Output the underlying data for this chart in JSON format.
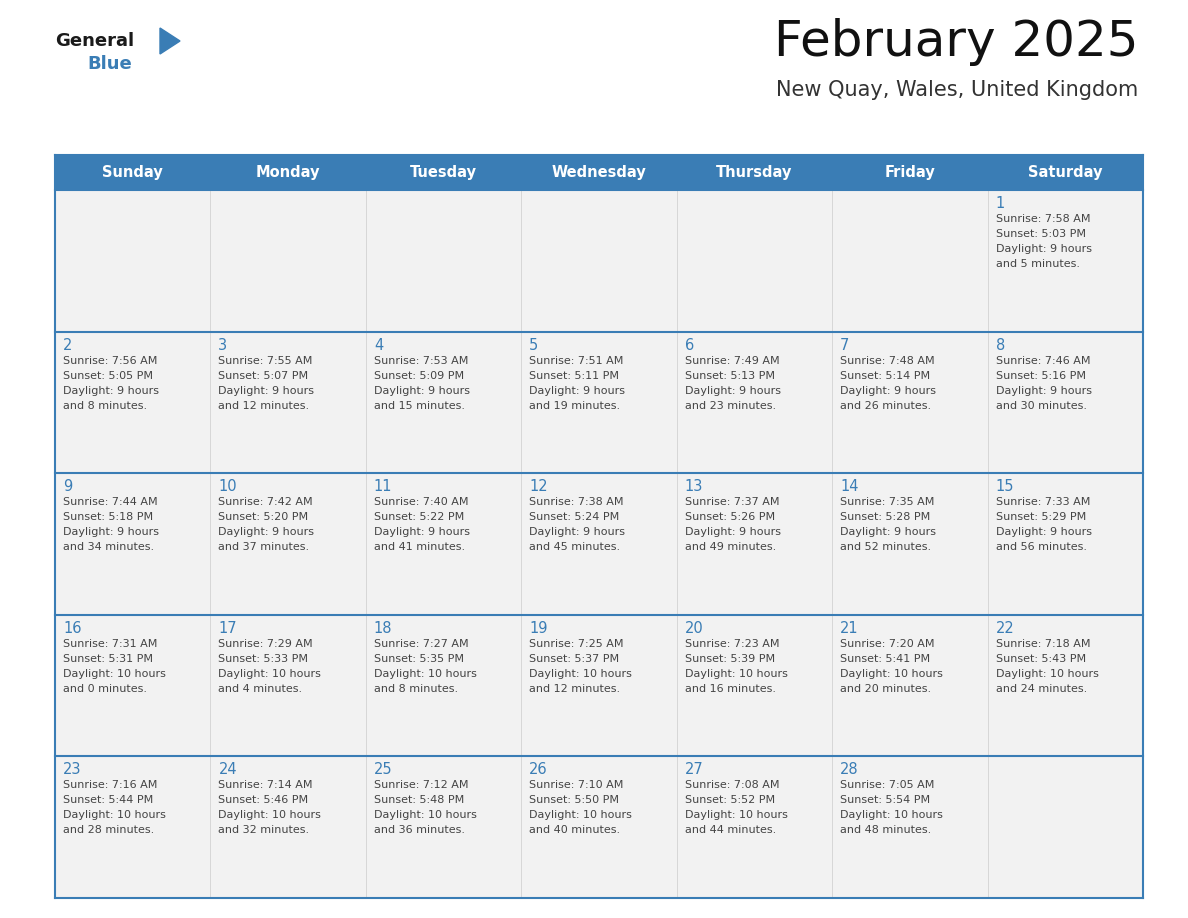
{
  "title": "February 2025",
  "subtitle": "New Quay, Wales, United Kingdom",
  "days_of_week": [
    "Sunday",
    "Monday",
    "Tuesday",
    "Wednesday",
    "Thursday",
    "Friday",
    "Saturday"
  ],
  "header_color": "#3A7DB5",
  "header_text_color": "#FFFFFF",
  "cell_bg": "#F2F2F2",
  "day_num_color": "#3A7DB5",
  "border_color": "#3A7DB5",
  "separator_color": "#AAAAAA",
  "info_text_color": "#444444",
  "logo_general_color": "#1A1A1A",
  "logo_blue_color": "#3A7DB5",
  "logo_triangle_color": "#3A7DB5",
  "calendar_data": [
    [
      {
        "day": null,
        "info": null
      },
      {
        "day": null,
        "info": null
      },
      {
        "day": null,
        "info": null
      },
      {
        "day": null,
        "info": null
      },
      {
        "day": null,
        "info": null
      },
      {
        "day": null,
        "info": null
      },
      {
        "day": 1,
        "sunrise": "7:58 AM",
        "sunset": "5:03 PM",
        "daylight": "9 hours",
        "daylight2": "and 5 minutes."
      }
    ],
    [
      {
        "day": 2,
        "sunrise": "7:56 AM",
        "sunset": "5:05 PM",
        "daylight": "9 hours",
        "daylight2": "and 8 minutes."
      },
      {
        "day": 3,
        "sunrise": "7:55 AM",
        "sunset": "5:07 PM",
        "daylight": "9 hours",
        "daylight2": "and 12 minutes."
      },
      {
        "day": 4,
        "sunrise": "7:53 AM",
        "sunset": "5:09 PM",
        "daylight": "9 hours",
        "daylight2": "and 15 minutes."
      },
      {
        "day": 5,
        "sunrise": "7:51 AM",
        "sunset": "5:11 PM",
        "daylight": "9 hours",
        "daylight2": "and 19 minutes."
      },
      {
        "day": 6,
        "sunrise": "7:49 AM",
        "sunset": "5:13 PM",
        "daylight": "9 hours",
        "daylight2": "and 23 minutes."
      },
      {
        "day": 7,
        "sunrise": "7:48 AM",
        "sunset": "5:14 PM",
        "daylight": "9 hours",
        "daylight2": "and 26 minutes."
      },
      {
        "day": 8,
        "sunrise": "7:46 AM",
        "sunset": "5:16 PM",
        "daylight": "9 hours",
        "daylight2": "and 30 minutes."
      }
    ],
    [
      {
        "day": 9,
        "sunrise": "7:44 AM",
        "sunset": "5:18 PM",
        "daylight": "9 hours",
        "daylight2": "and 34 minutes."
      },
      {
        "day": 10,
        "sunrise": "7:42 AM",
        "sunset": "5:20 PM",
        "daylight": "9 hours",
        "daylight2": "and 37 minutes."
      },
      {
        "day": 11,
        "sunrise": "7:40 AM",
        "sunset": "5:22 PM",
        "daylight": "9 hours",
        "daylight2": "and 41 minutes."
      },
      {
        "day": 12,
        "sunrise": "7:38 AM",
        "sunset": "5:24 PM",
        "daylight": "9 hours",
        "daylight2": "and 45 minutes."
      },
      {
        "day": 13,
        "sunrise": "7:37 AM",
        "sunset": "5:26 PM",
        "daylight": "9 hours",
        "daylight2": "and 49 minutes."
      },
      {
        "day": 14,
        "sunrise": "7:35 AM",
        "sunset": "5:28 PM",
        "daylight": "9 hours",
        "daylight2": "and 52 minutes."
      },
      {
        "day": 15,
        "sunrise": "7:33 AM",
        "sunset": "5:29 PM",
        "daylight": "9 hours",
        "daylight2": "and 56 minutes."
      }
    ],
    [
      {
        "day": 16,
        "sunrise": "7:31 AM",
        "sunset": "5:31 PM",
        "daylight": "10 hours",
        "daylight2": "and 0 minutes."
      },
      {
        "day": 17,
        "sunrise": "7:29 AM",
        "sunset": "5:33 PM",
        "daylight": "10 hours",
        "daylight2": "and 4 minutes."
      },
      {
        "day": 18,
        "sunrise": "7:27 AM",
        "sunset": "5:35 PM",
        "daylight": "10 hours",
        "daylight2": "and 8 minutes."
      },
      {
        "day": 19,
        "sunrise": "7:25 AM",
        "sunset": "5:37 PM",
        "daylight": "10 hours",
        "daylight2": "and 12 minutes."
      },
      {
        "day": 20,
        "sunrise": "7:23 AM",
        "sunset": "5:39 PM",
        "daylight": "10 hours",
        "daylight2": "and 16 minutes."
      },
      {
        "day": 21,
        "sunrise": "7:20 AM",
        "sunset": "5:41 PM",
        "daylight": "10 hours",
        "daylight2": "and 20 minutes."
      },
      {
        "day": 22,
        "sunrise": "7:18 AM",
        "sunset": "5:43 PM",
        "daylight": "10 hours",
        "daylight2": "and 24 minutes."
      }
    ],
    [
      {
        "day": 23,
        "sunrise": "7:16 AM",
        "sunset": "5:44 PM",
        "daylight": "10 hours",
        "daylight2": "and 28 minutes."
      },
      {
        "day": 24,
        "sunrise": "7:14 AM",
        "sunset": "5:46 PM",
        "daylight": "10 hours",
        "daylight2": "and 32 minutes."
      },
      {
        "day": 25,
        "sunrise": "7:12 AM",
        "sunset": "5:48 PM",
        "daylight": "10 hours",
        "daylight2": "and 36 minutes."
      },
      {
        "day": 26,
        "sunrise": "7:10 AM",
        "sunset": "5:50 PM",
        "daylight": "10 hours",
        "daylight2": "and 40 minutes."
      },
      {
        "day": 27,
        "sunrise": "7:08 AM",
        "sunset": "5:52 PM",
        "daylight": "10 hours",
        "daylight2": "and 44 minutes."
      },
      {
        "day": 28,
        "sunrise": "7:05 AM",
        "sunset": "5:54 PM",
        "daylight": "10 hours",
        "daylight2": "and 48 minutes."
      },
      {
        "day": null,
        "info": null
      }
    ]
  ]
}
